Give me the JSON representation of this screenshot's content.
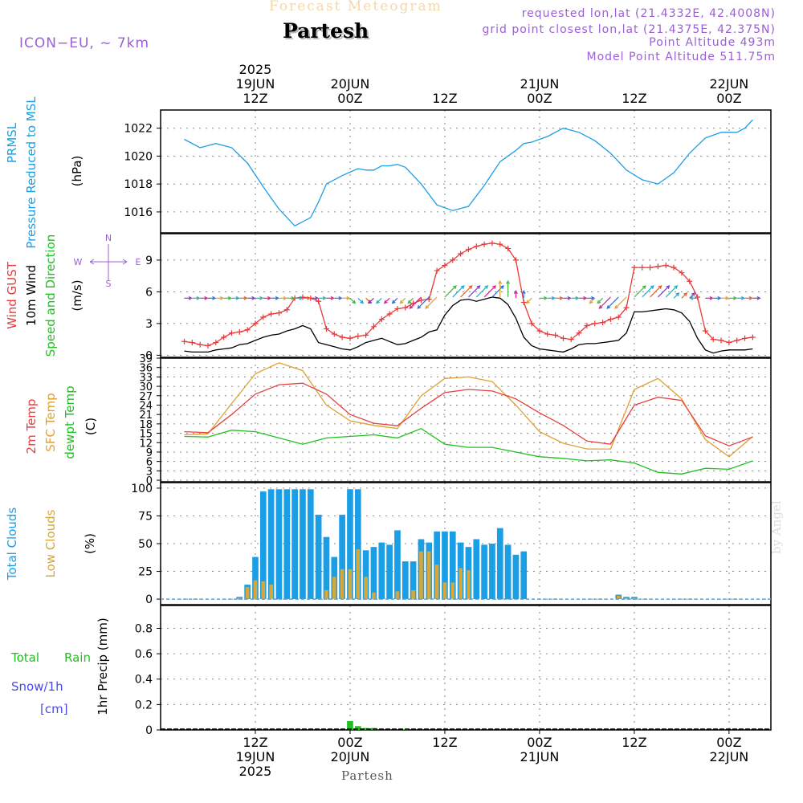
{
  "header": {
    "product_title": "Forecast Meteogram",
    "location": "Partesh",
    "model": "ICON−EU, ~ 7km",
    "requested": "requested lon,lat (21.4332E, 42.4008N)",
    "grid_point": "grid point closest lon,lat (21.4375E, 42.375N)",
    "point_altitude": "Point Altitude 493m",
    "model_altitude": "Model Point Altitude 511.75m",
    "footer_location": "Partesh",
    "watermark": "by Angel"
  },
  "time_axis": {
    "top_year": "2025",
    "ticks": [
      {
        "hour": 12,
        "top": "19JUN",
        "bottom": "12Z",
        "bottom_date": "19JUN",
        "year": "2025"
      },
      {
        "hour": 24,
        "top": "20JUN",
        "bottom": "00Z",
        "bottom_date": "20JUN"
      },
      {
        "hour": 36,
        "top": "12Z",
        "bottom": "12Z",
        "bottom_date": ""
      },
      {
        "hour": 48,
        "top": "21JUN",
        "bottom": "00Z",
        "bottom_date": "21JUN"
      },
      {
        "hour": 60,
        "top": "12Z",
        "bottom": "12Z",
        "bottom_date": ""
      },
      {
        "hour": 72,
        "top": "22JUN",
        "bottom": "00Z",
        "bottom_date": "22JUN"
      }
    ]
  },
  "colors": {
    "pressure": "#1a9ee6",
    "gust": "#e83a3a",
    "wind": "#000000",
    "t2m": "#e84040",
    "sfc": "#e0a030",
    "dewpt": "#22c022",
    "total_clouds": "#1a9ee6",
    "low_clouds": "#d4a83a",
    "rain": "#22c022",
    "snow": "#4a4ae8",
    "label": "#9b5fd6",
    "grid": "#888888"
  },
  "panel_labels": {
    "pressure": {
      "l1": "PRMSL",
      "l2": "Pressure Reduced to MSL",
      "unit": "(hPa)"
    },
    "wind": {
      "gust": "Wind GUST",
      "wind10": "10m Wind",
      "dir": "Speed and Direction",
      "unit": "(m/s)",
      "compass_n": "N",
      "compass_s": "S",
      "compass_w": "W",
      "compass_e": "E"
    },
    "temp": {
      "t2m": "2m Temp",
      "sfc": "SFC Temp",
      "dew": "dewpt Temp",
      "unit": "(C)"
    },
    "clouds": {
      "total": "Total Clouds",
      "low": "Low Clouds",
      "unit": "(%)"
    },
    "precip": {
      "rain1": "Total",
      "rain2": "Rain",
      "snow1": "Snow/1h",
      "snow2": "[cm]",
      "unit": "1hr Precip (mm)"
    }
  },
  "chart_data": [
    {
      "type": "line",
      "name": "pressure",
      "ylim": [
        1014.5,
        1023.3
      ],
      "yticks": [
        1016,
        1018,
        1020,
        1022
      ],
      "grid": true,
      "x": [
        3,
        5,
        7,
        9,
        11,
        13,
        15,
        17,
        19,
        20,
        21,
        23,
        25,
        26,
        27,
        28,
        29,
        30,
        31,
        33,
        35,
        37,
        39,
        41,
        43,
        45,
        46,
        47,
        49,
        51,
        53,
        55,
        57,
        59,
        61,
        63,
        65,
        67,
        69,
        71,
        73,
        74,
        75
      ],
      "values": [
        1021.2,
        1020.6,
        1020.9,
        1020.6,
        1019.5,
        1017.8,
        1016.2,
        1015.0,
        1015.6,
        1016.7,
        1018.0,
        1018.6,
        1019.1,
        1019.0,
        1019.0,
        1019.3,
        1019.3,
        1019.4,
        1019.2,
        1018.0,
        1016.5,
        1016.1,
        1016.4,
        1017.9,
        1019.6,
        1020.4,
        1020.9,
        1021.0,
        1021.4,
        1022.0,
        1021.7,
        1021.1,
        1020.2,
        1019.0,
        1018.3,
        1018.0,
        1018.8,
        1020.2,
        1021.3,
        1021.7,
        1021.7,
        1022.0,
        1022.6
      ]
    },
    {
      "type": "line",
      "name": "wind",
      "ylim": [
        -0.2,
        11.5
      ],
      "yticks": [
        0,
        3,
        6,
        9
      ],
      "grid": true,
      "x": [
        3,
        4,
        5,
        6,
        7,
        8,
        9,
        10,
        11,
        12,
        13,
        14,
        15,
        16,
        17,
        18,
        19,
        20,
        21,
        22,
        23,
        24,
        25,
        26,
        27,
        28,
        29,
        30,
        31,
        32,
        33,
        34,
        35,
        36,
        37,
        38,
        39,
        40,
        41,
        42,
        43,
        44,
        45,
        46,
        47,
        48,
        49,
        50,
        51,
        52,
        53,
        54,
        55,
        56,
        57,
        58,
        59,
        60,
        61,
        62,
        63,
        64,
        65,
        66,
        67,
        68,
        69,
        70,
        71,
        72,
        73,
        74,
        75
      ],
      "series": [
        {
          "name": "Wind GUST",
          "values": [
            1.3,
            1.2,
            1.0,
            0.9,
            1.2,
            1.7,
            2.1,
            2.2,
            2.4,
            3.0,
            3.6,
            3.9,
            4.0,
            4.3,
            5.4,
            5.5,
            5.4,
            5.1,
            2.5,
            2.0,
            1.7,
            1.6,
            1.8,
            1.9,
            2.7,
            3.4,
            3.9,
            4.4,
            4.5,
            4.9,
            5.2,
            5.3,
            8.0,
            8.5,
            9.0,
            9.6,
            10.0,
            10.3,
            10.5,
            10.6,
            10.5,
            10.1,
            9.0,
            5.0,
            3.0,
            2.3,
            2.0,
            1.9,
            1.6,
            1.5,
            2.1,
            2.8,
            3.0,
            3.1,
            3.4,
            3.6,
            4.5,
            8.3,
            8.3,
            8.3,
            8.4,
            8.5,
            8.3,
            7.8,
            7.0,
            5.5,
            2.3,
            1.5,
            1.4,
            1.2,
            1.4,
            1.6,
            1.7
          ]
        },
        {
          "name": "10m Wind",
          "values": [
            0.4,
            0.3,
            0.3,
            0.3,
            0.5,
            0.6,
            0.7,
            1.0,
            1.1,
            1.4,
            1.7,
            1.9,
            2.0,
            2.3,
            2.5,
            2.8,
            2.5,
            1.2,
            1.0,
            0.8,
            0.6,
            0.5,
            0.8,
            1.2,
            1.4,
            1.6,
            1.3,
            1.0,
            1.1,
            1.4,
            1.7,
            2.2,
            2.4,
            3.8,
            4.7,
            5.2,
            5.3,
            5.1,
            5.3,
            5.5,
            5.4,
            4.8,
            3.5,
            1.7,
            0.9,
            0.6,
            0.5,
            0.4,
            0.3,
            0.6,
            1.0,
            1.1,
            1.1,
            1.2,
            1.3,
            1.4,
            2.1,
            4.1,
            4.1,
            4.2,
            4.3,
            4.4,
            4.3,
            4.0,
            3.2,
            1.6,
            0.5,
            0.2,
            0.4,
            0.5,
            0.5,
            0.5,
            0.6
          ]
        }
      ],
      "direction_arrows_from": [
        "W",
        "W",
        "W",
        "W",
        "W",
        "W",
        "W",
        "W",
        "W",
        "W",
        "W",
        "W",
        "W",
        "W",
        "W",
        "W",
        "W",
        "W",
        "W",
        "W",
        "W",
        "NW",
        "NW",
        "NW",
        "NE",
        "NE",
        "NE",
        "NE",
        "NE",
        "NE",
        "NE",
        "NE",
        "NE",
        "SW",
        "SW",
        "SW",
        "SW",
        "SW",
        "SW",
        "SW",
        "S",
        "S",
        "S",
        "S",
        "NE",
        "W",
        "W",
        "W",
        "W",
        "W",
        "W",
        "W",
        "NE",
        "NE",
        "NE",
        "NE",
        "NE",
        "SW",
        "SW",
        "SW",
        "SW",
        "SW",
        "SW",
        "SW",
        "SW",
        "E",
        "W",
        "W",
        "W",
        "W",
        "W",
        "W",
        "W"
      ]
    },
    {
      "type": "line",
      "name": "temperature",
      "ylim": [
        -0.5,
        39
      ],
      "yticks": [
        0,
        3,
        6,
        9,
        12,
        15,
        18,
        21,
        24,
        27,
        30,
        33,
        36,
        39
      ],
      "grid": true,
      "x": [
        3,
        6,
        9,
        12,
        15,
        18,
        21,
        24,
        27,
        30,
        33,
        36,
        39,
        42,
        45,
        48,
        51,
        54,
        57,
        60,
        63,
        66,
        69,
        72,
        75
      ],
      "series": [
        {
          "name": "2m Temp",
          "values": [
            15.5,
            15.2,
            21.0,
            27.5,
            30.5,
            31.0,
            27.5,
            21.0,
            18.2,
            17.4,
            23.0,
            28.0,
            29.0,
            28.5,
            26.0,
            21.5,
            17.5,
            12.5,
            11.5,
            24.0,
            26.5,
            25.5,
            14.2,
            11.0,
            13.8
          ]
        },
        {
          "name": "SFC Temp",
          "values": [
            14.5,
            14.8,
            24.5,
            34.0,
            37.5,
            35.0,
            24.0,
            19.0,
            17.5,
            16.5,
            27.0,
            32.5,
            33.0,
            31.5,
            24.0,
            15.5,
            11.8,
            10.0,
            10.0,
            29.0,
            32.5,
            26.0,
            13.0,
            7.5,
            14.0
          ]
        },
        {
          "name": "dewpt Temp",
          "values": [
            14.0,
            13.8,
            16.0,
            15.5,
            13.5,
            11.5,
            13.5,
            14.0,
            14.5,
            13.5,
            16.5,
            11.5,
            10.5,
            10.5,
            9.0,
            7.5,
            7.0,
            6.2,
            6.5,
            5.5,
            2.5,
            2.0,
            3.8,
            3.5,
            6.2
          ]
        }
      ]
    },
    {
      "type": "bar",
      "name": "clouds",
      "ylim": [
        -5,
        105
      ],
      "yticks": [
        0,
        25,
        50,
        75,
        100
      ],
      "grid": true,
      "x": [
        4,
        5,
        6,
        7,
        8,
        9,
        10,
        11,
        12,
        13,
        14,
        15,
        16,
        17,
        18,
        19,
        20,
        21,
        22,
        23,
        24,
        25,
        26,
        27,
        28,
        29,
        30,
        31,
        32,
        33,
        34,
        35,
        36,
        37,
        38,
        39,
        40,
        41,
        42,
        43,
        44,
        45,
        46,
        47,
        48,
        49,
        50,
        51,
        52,
        53,
        54,
        55,
        56,
        57,
        58,
        59,
        60,
        61,
        62,
        63,
        64,
        65,
        66,
        67,
        68,
        69,
        70,
        71,
        72,
        73,
        74,
        75
      ],
      "series": [
        {
          "name": "Total Clouds",
          "values": [
            0,
            0,
            0,
            0,
            0,
            0,
            2,
            13,
            38,
            97,
            99,
            99,
            99,
            99,
            99,
            99,
            76,
            56,
            38,
            76,
            99,
            99,
            44,
            47,
            51,
            49,
            62,
            34,
            34,
            54,
            51,
            61,
            61,
            61,
            51,
            47,
            54,
            49,
            50,
            64,
            49,
            40,
            43,
            0,
            0,
            0,
            0,
            0,
            0,
            0,
            0,
            0,
            0,
            0,
            4,
            2,
            2,
            0,
            0,
            0,
            0,
            0,
            0,
            0,
            0,
            0,
            0,
            0,
            0,
            0,
            0,
            0
          ]
        },
        {
          "name": "Low Clouds",
          "values": [
            0,
            0,
            0,
            0,
            0,
            0,
            1,
            11,
            17,
            16,
            13,
            0,
            0,
            0,
            0,
            0,
            0,
            8,
            20,
            27,
            27,
            45,
            20,
            6,
            0,
            0,
            7,
            0,
            8,
            43,
            43,
            31,
            15,
            15,
            28,
            26,
            0,
            0,
            0,
            0,
            0,
            0,
            0,
            0,
            0,
            0,
            0,
            0,
            0,
            0,
            0,
            0,
            0,
            0,
            3,
            1,
            1,
            0,
            0,
            0,
            0,
            0,
            0,
            0,
            0,
            0,
            0,
            0,
            0,
            0,
            0,
            0
          ]
        }
      ]
    },
    {
      "type": "bar",
      "name": "precip",
      "ylim": [
        0,
        0.98
      ],
      "yticks": [
        0,
        0.2,
        0.4,
        0.6,
        0.8
      ],
      "grid": true,
      "x": [
        24,
        25,
        26,
        27,
        31
      ],
      "series": [
        {
          "name": "Total Rain",
          "values": [
            0.07,
            0.03,
            0.015,
            0.015,
            0.005
          ]
        }
      ]
    }
  ]
}
